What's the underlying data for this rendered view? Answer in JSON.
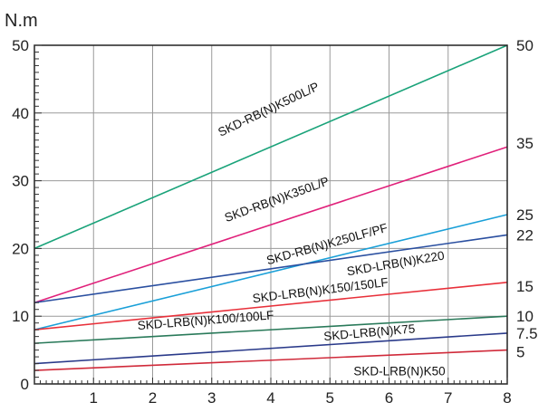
{
  "chart_data": {
    "type": "line",
    "title": "",
    "ylabel": "N.m",
    "xlabel": "",
    "xlim": [
      0,
      8
    ],
    "ylim": [
      0,
      50
    ],
    "grid": true,
    "x_ticks": [
      "1",
      "2",
      "3",
      "4",
      "5",
      "6",
      "7",
      "8"
    ],
    "y_ticks": [
      "0",
      "10",
      "20",
      "30",
      "40",
      "50"
    ],
    "right_labels": [
      "50",
      "35",
      "25",
      "22",
      "15",
      "10",
      "7.5",
      "5"
    ],
    "series": [
      {
        "name": "SKD-RB(N)K500L/P",
        "x": [
          0,
          8
        ],
        "y": [
          20,
          50
        ],
        "color": "#1aa37a",
        "label_x": 3.15,
        "label_y": 36.5,
        "label_angle": -25.5
      },
      {
        "name": "SKD-RB(N)K350L/P",
        "x": [
          0,
          8
        ],
        "y": [
          12,
          35
        ],
        "color": "#e0207a",
        "label_x": 3.25,
        "label_y": 23.9,
        "label_angle": -20.0
      },
      {
        "name": "SKD-RB(N)K250LF/PF",
        "x": [
          0,
          8
        ],
        "y": [
          8,
          25
        ],
        "color": "#1aa0d8",
        "label_x": 3.95,
        "label_y": 17.6,
        "label_angle": -15.5
      },
      {
        "name": "SKD-LRB(N)K220",
        "x": [
          0,
          8
        ],
        "y": [
          12,
          22
        ],
        "color": "#2a4fa0",
        "label_x": 5.3,
        "label_y": 16.0,
        "label_angle": -9.5
      },
      {
        "name": "SKD-LRB(N)K150/150LF",
        "x": [
          0,
          8
        ],
        "y": [
          8,
          15
        ],
        "color": "#e8303a",
        "label_x": 3.7,
        "label_y": 12.0,
        "label_angle": -7.0
      },
      {
        "name": "SKD-LRB(N)K100/100LF",
        "x": [
          0,
          8
        ],
        "y": [
          6,
          10
        ],
        "color": "#2a7a5a",
        "label_x": 1.75,
        "label_y": 8.0,
        "label_angle": -4.5
      },
      {
        "name": "SKD-LRB(N)K75",
        "x": [
          0,
          8
        ],
        "y": [
          3,
          7.5
        ],
        "color": "#2a3a8a",
        "label_x": 4.9,
        "label_y": 6.4,
        "label_angle": -5.0
      },
      {
        "name": "SKD-LRB(N)K50",
        "x": [
          0,
          8
        ],
        "y": [
          2,
          5
        ],
        "color": "#d02a3a",
        "label_x": 5.4,
        "label_y": 1.3,
        "label_angle": 0
      }
    ]
  }
}
